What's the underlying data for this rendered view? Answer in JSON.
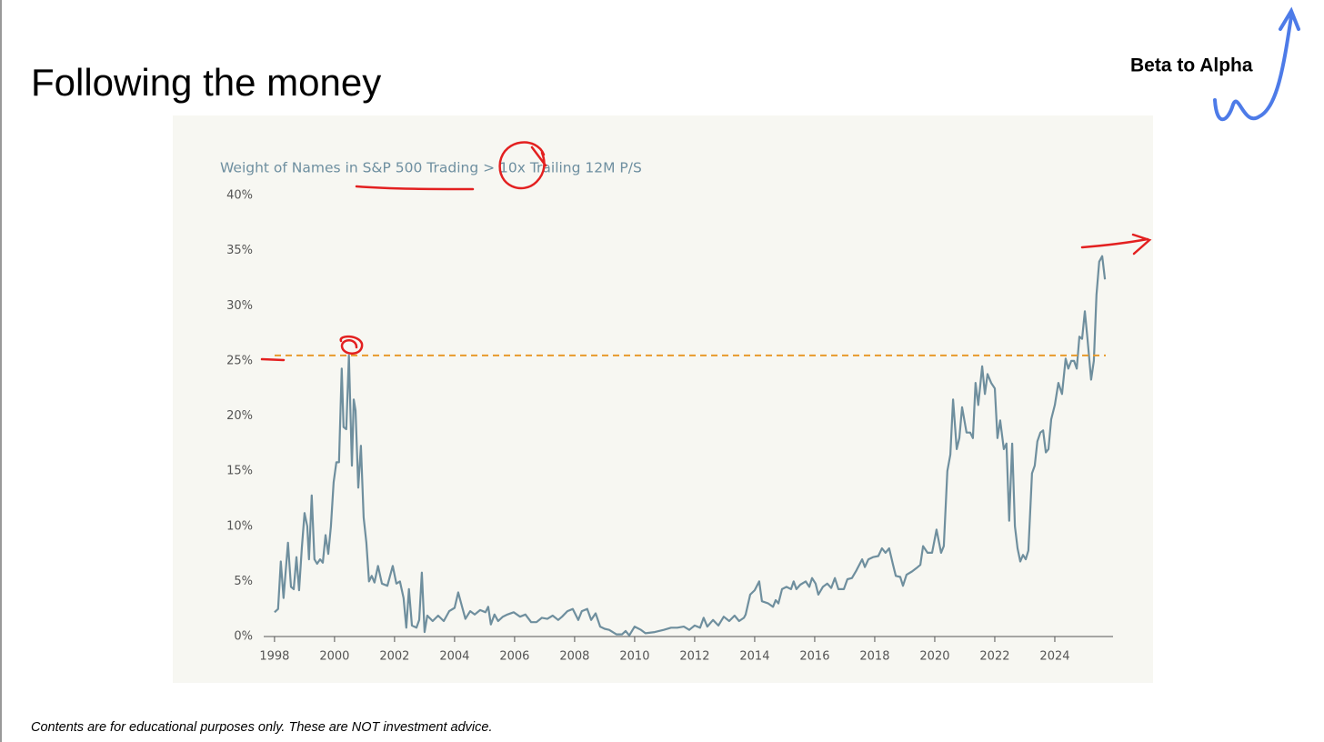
{
  "slide": {
    "title": "Following the money",
    "logo": "Beta to Alpha",
    "footer": "Contents are for educational purposes only. These are NOT investment advice."
  },
  "chart_data": {
    "type": "line",
    "title": "Weight of Names in S&P 500 Trading > 10x Trailing 12M P/S",
    "color": "#6f8f9e",
    "x": [
      1998.0,
      1998.12,
      1998.21,
      1998.3,
      1998.45,
      1998.55,
      1998.64,
      1998.73,
      1998.82,
      1998.91,
      1999.0,
      1999.09,
      1999.15,
      1999.24,
      1999.33,
      1999.42,
      1999.52,
      1999.61,
      1999.7,
      1999.79,
      1999.88,
      1999.97,
      2000.06,
      2000.15,
      2000.24,
      2000.3,
      2000.39,
      2000.48,
      2000.58,
      2000.64,
      2000.7,
      2000.79,
      2000.88,
      2000.97,
      2001.06,
      2001.15,
      2001.24,
      2001.33,
      2001.45,
      2001.58,
      2001.76,
      2001.94,
      2002.06,
      2002.18,
      2002.3,
      2002.39,
      2002.48,
      2002.58,
      2002.73,
      2002.82,
      2002.91,
      2003.0,
      2003.09,
      2003.27,
      2003.45,
      2003.64,
      2003.82,
      2004.0,
      2004.12,
      2004.24,
      2004.36,
      2004.52,
      2004.67,
      2004.85,
      2005.03,
      2005.12,
      2005.21,
      2005.33,
      2005.45,
      2005.61,
      2005.76,
      2005.97,
      2006.18,
      2006.36,
      2006.55,
      2006.73,
      2006.91,
      2007.09,
      2007.27,
      2007.45,
      2007.58,
      2007.76,
      2007.94,
      2008.12,
      2008.24,
      2008.42,
      2008.55,
      2008.7,
      2008.85,
      2009.0,
      2009.15,
      2009.39,
      2009.58,
      2009.7,
      2009.82,
      2010.0,
      2010.21,
      2010.36,
      2010.67,
      2010.97,
      2011.21,
      2011.42,
      2011.64,
      2011.82,
      2012.0,
      2012.18,
      2012.3,
      2012.42,
      2012.61,
      2012.79,
      2012.97,
      2013.15,
      2013.33,
      2013.48,
      2013.64,
      2013.7,
      2013.85,
      2014.0,
      2014.15,
      2014.24,
      2014.45,
      2014.61,
      2014.7,
      2014.79,
      2014.91,
      2015.06,
      2015.21,
      2015.3,
      2015.39,
      2015.52,
      2015.7,
      2015.82,
      2015.91,
      2016.03,
      2016.12,
      2016.27,
      2016.42,
      2016.55,
      2016.67,
      2016.79,
      2016.97,
      2017.09,
      2017.24,
      2017.39,
      2017.58,
      2017.67,
      2017.79,
      2017.94,
      2018.12,
      2018.24,
      2018.36,
      2018.48,
      2018.61,
      2018.7,
      2018.85,
      2018.94,
      2019.06,
      2019.24,
      2019.39,
      2019.52,
      2019.61,
      2019.76,
      2019.91,
      2020.06,
      2020.21,
      2020.3,
      2020.42,
      2020.52,
      2020.61,
      2020.73,
      2020.82,
      2020.91,
      2021.06,
      2021.18,
      2021.27,
      2021.36,
      2021.45,
      2021.58,
      2021.67,
      2021.76,
      2021.88,
      2022.0,
      2022.09,
      2022.18,
      2022.3,
      2022.39,
      2022.48,
      2022.58,
      2022.67,
      2022.76,
      2022.85,
      2022.94,
      2023.03,
      2023.12,
      2023.24,
      2023.33,
      2023.42,
      2023.52,
      2023.61,
      2023.7,
      2023.79,
      2023.88,
      2024.0,
      2024.12,
      2024.24,
      2024.36,
      2024.45,
      2024.55,
      2024.64,
      2024.73,
      2024.82,
      2024.91,
      2025.0,
      2025.09,
      2025.21,
      2025.3,
      2025.39,
      2025.48,
      2025.58,
      2025.67
    ],
    "values": [
      2.2,
      2.5,
      6.8,
      3.5,
      8.5,
      4.5,
      4.3,
      7.2,
      4.2,
      8,
      11.2,
      10,
      7,
      12.8,
      7,
      6.6,
      7,
      6.7,
      9.2,
      7.5,
      10,
      14,
      15.8,
      15.8,
      24.3,
      19,
      18.8,
      25.5,
      15.5,
      21.5,
      20.5,
      13.5,
      17.3,
      10.8,
      8.5,
      5,
      5.5,
      4.9,
      6.4,
      4.8,
      4.6,
      6.4,
      4.8,
      5,
      3.5,
      0.8,
      4.3,
      1,
      0.8,
      1.5,
      5.8,
      0.4,
      1.9,
      1.4,
      1.9,
      1.4,
      2.3,
      2.6,
      4,
      2.8,
      1.6,
      2.3,
      2,
      2.4,
      2.2,
      2.7,
      1.1,
      2,
      1.4,
      1.8,
      2,
      2.2,
      1.8,
      2,
      1.3,
      1.3,
      1.7,
      1.6,
      1.9,
      1.5,
      1.8,
      2.3,
      2.5,
      1.5,
      2.3,
      2.5,
      1.5,
      2.1,
      0.9,
      0.7,
      0.6,
      0.2,
      0.2,
      0.5,
      0.1,
      0.9,
      0.6,
      0.3,
      0.4,
      0.6,
      0.8,
      0.8,
      0.9,
      0.6,
      1,
      0.8,
      1.7,
      0.9,
      1.5,
      1,
      1.8,
      1.4,
      1.9,
      1.4,
      1.7,
      2,
      3.8,
      4.2,
      5,
      3.2,
      3,
      2.7,
      3.3,
      3,
      4.3,
      4.5,
      4.3,
      5,
      4.3,
      4.7,
      5,
      4.5,
      5.3,
      4.8,
      3.8,
      4.5,
      4.8,
      4.4,
      5.3,
      4.3,
      4.3,
      5.2,
      5.3,
      6,
      7,
      6.3,
      7,
      7.2,
      7.3,
      8,
      7.6,
      8,
      6.5,
      5.5,
      5.4,
      4.6,
      5.6,
      5.9,
      6.2,
      6.5,
      8.2,
      7.6,
      7.6,
      9.7,
      7.6,
      8.2,
      15,
      16.5,
      21.5,
      17,
      18,
      20.8,
      18.5,
      18.5,
      18,
      23,
      21,
      24.5,
      22,
      23.8,
      23,
      22.5,
      18,
      19.6,
      17,
      17.5,
      10.5,
      17.5,
      10,
      8,
      6.8,
      7.4,
      7,
      7.8,
      14.8,
      15.5,
      17.7,
      18.5,
      18.7,
      16.7,
      17,
      19.7,
      21,
      23,
      22,
      25.2,
      24.3,
      25,
      25,
      24.3,
      27.2,
      27,
      29.5,
      27,
      23.3,
      25,
      31,
      34,
      34.5,
      32.4
    ],
    "xlim": [
      1997.64,
      2025.94
    ],
    "xticks": [
      1998,
      2000,
      2002,
      2004,
      2006,
      2008,
      2010,
      2012,
      2014,
      2016,
      2018,
      2020,
      2022,
      2024
    ],
    "ylim": [
      0,
      40
    ],
    "yticks": [
      {
        "value": 0,
        "label": "0%"
      },
      {
        "value": 5,
        "label": "5%"
      },
      {
        "value": 10,
        "label": "10%"
      },
      {
        "value": 15,
        "label": "15%"
      },
      {
        "value": 20,
        "label": "20%"
      },
      {
        "value": 25,
        "label": "25%"
      },
      {
        "value": 30,
        "label": "30%"
      },
      {
        "value": 35,
        "label": "35%"
      },
      {
        "value": 40,
        "label": "40%"
      }
    ],
    "reference_line": {
      "value": 25.5,
      "color": "#e89a2c"
    }
  }
}
